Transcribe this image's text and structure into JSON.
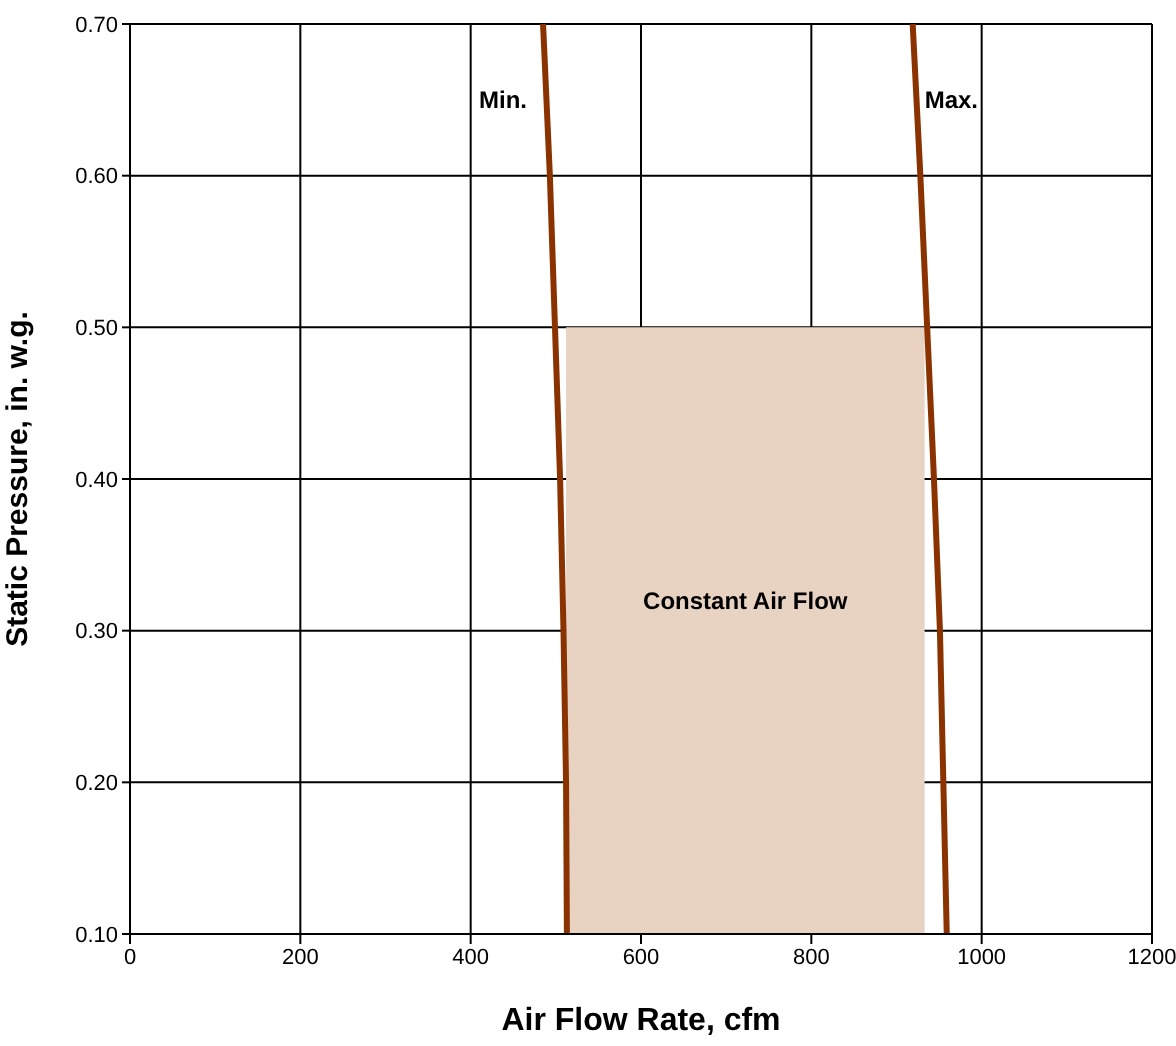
{
  "chart_data": {
    "type": "line",
    "xlabel": "Air Flow Rate, cfm",
    "ylabel": "Static Pressure, in. w.g.",
    "series": [
      {
        "type": "area",
        "color": "#e8d2c2",
        "x": [
          512,
          933
        ],
        "values": [
          0.5,
          0.5
        ]
      },
      {
        "name": "Min.",
        "color": "#8b3300",
        "x": [
          485,
          493,
          499,
          505,
          509,
          512,
          513
        ],
        "values": [
          0.7,
          0.6,
          0.5,
          0.4,
          0.3,
          0.2,
          0.1
        ]
      },
      {
        "name": "Max.",
        "color": "#8b3300",
        "x": [
          919,
          928,
          936,
          944,
          951,
          955,
          959
        ],
        "values": [
          0.7,
          0.6,
          0.5,
          0.4,
          0.3,
          0.2,
          0.1
        ]
      }
    ],
    "annotations": [
      "Constant Air Flow"
    ],
    "xlim": [
      0,
      1200
    ],
    "xticks": [
      0,
      200,
      400,
      600,
      800,
      1000,
      1200
    ],
    "ylim": [
      0.1,
      0.7
    ],
    "yticks": [
      {
        "value": 0.1,
        "label": "0.10"
      },
      {
        "value": 0.2,
        "label": "0.20"
      },
      {
        "value": 0.3,
        "label": "0.30"
      },
      {
        "value": 0.4,
        "label": "0.40"
      },
      {
        "value": 0.5,
        "label": "0.50"
      },
      {
        "value": 0.6,
        "label": "0.60"
      },
      {
        "value": 0.7,
        "label": "0.70"
      }
    ],
    "grid": true,
    "legend": false,
    "marker": "none",
    "line_style": "solid"
  }
}
